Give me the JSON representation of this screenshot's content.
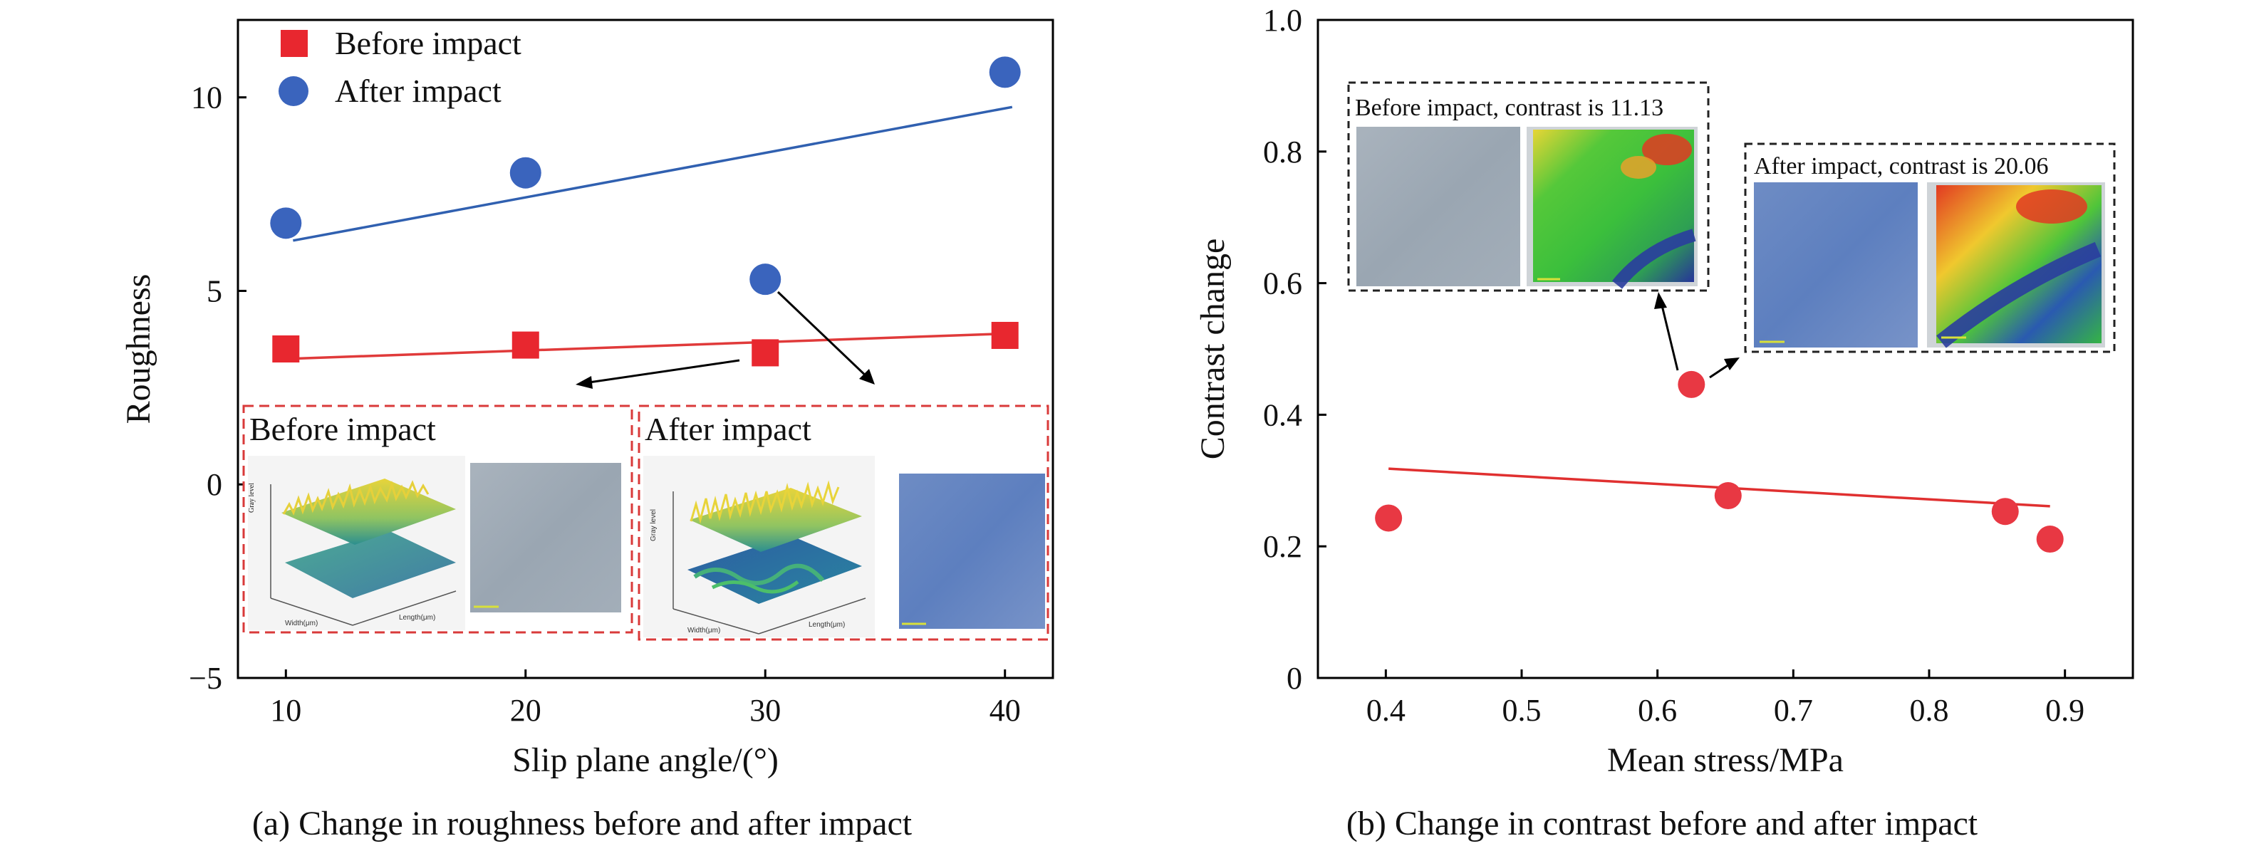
{
  "colors": {
    "before": "#e8272f",
    "after": "#3a64bd",
    "point_b": "#e83843",
    "fit_a_red": "#e03a3a",
    "fit_a_blue": "#3060b0",
    "fit_b": "#e03030"
  },
  "chart_data": [
    {
      "type": "scatter",
      "caption": "(a) Change in roughness before and after impact",
      "xlabel": "Slip plane angle/(°)",
      "ylabel": "Roughness",
      "xlim": [
        8,
        42
      ],
      "ylim": [
        -5,
        12
      ],
      "xticks": [
        10,
        20,
        30,
        40
      ],
      "yticks": [
        -5,
        0,
        5,
        10
      ],
      "xticklabels": [
        "10",
        "20",
        "30",
        "40"
      ],
      "yticklabels": [
        "−5",
        "0",
        "5",
        "10"
      ],
      "legend": [
        "Before impact",
        "After impact"
      ],
      "legend_position": "top-left",
      "series": [
        {
          "name": "Before impact",
          "marker": "square",
          "x": [
            10,
            20,
            30,
            40
          ],
          "y": [
            3.5,
            3.6,
            3.4,
            3.85
          ],
          "fit": {
            "x": [
              10.3,
              40.3
            ],
            "y": [
              3.25,
              3.9
            ]
          }
        },
        {
          "name": "After impact",
          "marker": "circle",
          "x": [
            10,
            20,
            30,
            40
          ],
          "y": [
            6.75,
            8.05,
            5.3,
            10.65
          ],
          "fit": {
            "x": [
              10.3,
              40.3
            ],
            "y": [
              6.3,
              9.75
            ]
          }
        }
      ],
      "insets": [
        {
          "label": "Before impact",
          "surface_axis_labels": [
            "Gray level",
            "Width(μm)",
            "Length(μm)"
          ]
        },
        {
          "label": "After impact",
          "surface_axis_labels": [
            "Gray level",
            "Width(μm)",
            "Length(μm)"
          ]
        }
      ]
    },
    {
      "type": "scatter",
      "caption": "(b) Change in contrast before and after impact",
      "xlabel": "Mean stress/MPa",
      "ylabel": "Contrast change",
      "xlim": [
        0.35,
        0.95
      ],
      "ylim": [
        0,
        1.0
      ],
      "xticks": [
        0.4,
        0.5,
        0.6,
        0.7,
        0.8,
        0.9
      ],
      "yticks": [
        0,
        0.2,
        0.4,
        0.6,
        0.8,
        1.0
      ],
      "xticklabels": [
        "0.4",
        "0.5",
        "0.6",
        "0.7",
        "0.8",
        "0.9"
      ],
      "yticklabels": [
        "0",
        "0.2",
        "0.4",
        "0.6",
        "0.8",
        "1.0"
      ],
      "series": [
        {
          "marker": "circle",
          "x": [
            0.402,
            0.625,
            0.652,
            0.856,
            0.889
          ],
          "y": [
            0.243,
            0.446,
            0.277,
            0.253,
            0.211
          ],
          "fit": {
            "x": [
              0.402,
              0.889
            ],
            "y": [
              0.318,
              0.261
            ]
          }
        }
      ],
      "insets": [
        {
          "label": "Before impact, contrast is 11.13"
        },
        {
          "label": "After impact, contrast is 20.06"
        }
      ]
    }
  ]
}
